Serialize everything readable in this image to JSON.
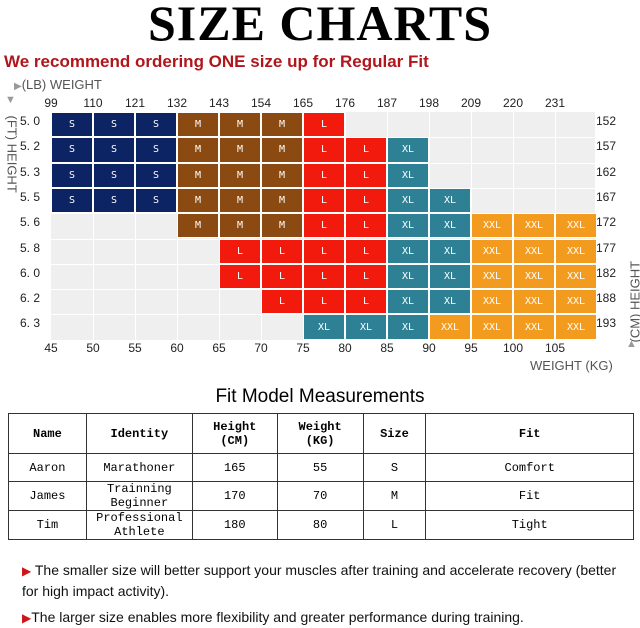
{
  "title": "SIZE CHARTS",
  "recommendation": "We recommend ordering ONE size up for Regular Fit",
  "axes": {
    "lb_label": "(LB) WEIGHT",
    "ft_label": "(FT) HEIGHT",
    "cm_label": "(CM) HEIGHT",
    "kg_label": "WEIGHT (KG)"
  },
  "weights_lb": [
    "99",
    "110",
    "121",
    "132",
    "143",
    "154",
    "165",
    "176",
    "187",
    "198",
    "209",
    "220",
    "231"
  ],
  "weights_kg": [
    "45",
    "50",
    "55",
    "60",
    "65",
    "70",
    "75",
    "80",
    "85",
    "90",
    "95",
    "100",
    "105"
  ],
  "heights_ft": [
    "5. 0",
    "5. 2",
    "5. 3",
    "5. 5",
    "5. 6",
    "5. 8",
    "6. 0",
    "6. 2",
    "6. 3"
  ],
  "heights_cm": [
    "152",
    "157",
    "162",
    "167",
    "172",
    "177",
    "182",
    "188",
    "193"
  ],
  "size_colors": {
    "S": "#0d2464",
    "M": "#8b4a12",
    "L": "#f21a0d",
    "XL": "#2e8095",
    "XXL": "#f39b1f"
  },
  "size_grid": [
    [
      "S",
      "S",
      "S",
      "M",
      "M",
      "M",
      "L",
      "",
      "",
      "",
      "",
      "",
      ""
    ],
    [
      "S",
      "S",
      "S",
      "M",
      "M",
      "M",
      "L",
      "L",
      "XL",
      "",
      "",
      "",
      ""
    ],
    [
      "S",
      "S",
      "S",
      "M",
      "M",
      "M",
      "L",
      "L",
      "XL",
      "",
      "",
      "",
      ""
    ],
    [
      "S",
      "S",
      "S",
      "M",
      "M",
      "M",
      "L",
      "L",
      "XL",
      "XL",
      "",
      "",
      ""
    ],
    [
      "",
      "",
      "",
      "M",
      "M",
      "M",
      "L",
      "L",
      "XL",
      "XL",
      "XXL",
      "XXL",
      "XXL"
    ],
    [
      "",
      "",
      "",
      "",
      "L",
      "L",
      "L",
      "L",
      "XL",
      "XL",
      "XXL",
      "XXL",
      "XXL"
    ],
    [
      "",
      "",
      "",
      "",
      "L",
      "L",
      "L",
      "L",
      "XL",
      "XL",
      "XXL",
      "XXL",
      "XXL"
    ],
    [
      "",
      "",
      "",
      "",
      "",
      "L",
      "L",
      "L",
      "XL",
      "XL",
      "XXL",
      "XXL",
      "XXL"
    ],
    [
      "",
      "",
      "",
      "",
      "",
      "",
      "XL",
      "XL",
      "XL",
      "XXL",
      "XXL",
      "XXL",
      "XXL"
    ]
  ],
  "fit_model": {
    "title": "Fit Model Measurements",
    "headers": [
      [
        "Name"
      ],
      [
        "Identity"
      ],
      [
        "Height",
        "(CM)"
      ],
      [
        "Weight",
        "(KG)"
      ],
      [
        "Size"
      ],
      [
        "Fit"
      ]
    ],
    "rows": [
      [
        "Aaron",
        "Marathoner",
        "165",
        "55",
        "S",
        "Comfort"
      ],
      [
        "James",
        "Trainning Beginner",
        "170",
        "70",
        "M",
        "Fit"
      ],
      [
        "Tim",
        "Professional Athlete",
        "180",
        "80",
        "L",
        "Tight"
      ]
    ]
  },
  "notes": [
    "The smaller size will better support your muscles after training and accelerate recovery (better for high impact activity).",
    "The larger size enables more flexibility and greater performance during training."
  ]
}
